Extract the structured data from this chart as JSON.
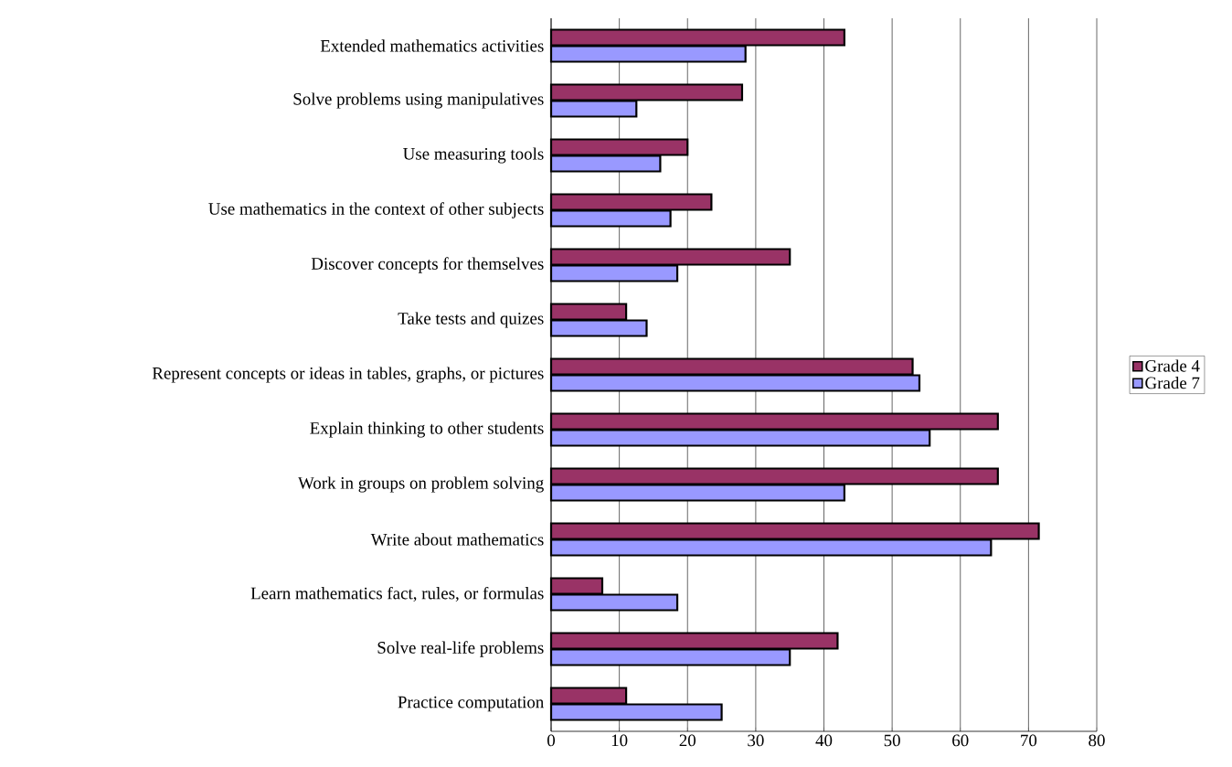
{
  "chart_data": {
    "type": "bar",
    "orientation": "horizontal",
    "categories": [
      "Extended mathematics activities",
      "Solve problems using manipulatives",
      "Use measuring tools",
      "Use mathematics in the context of other subjects",
      "Discover concepts for themselves",
      "Take tests and quizes",
      "Represent concepts or ideas in tables, graphs, or pictures",
      "Explain thinking to other students",
      "Work in groups on problem solving",
      "Write about mathematics",
      "Learn mathematics fact, rules, or formulas",
      "Solve real-life problems",
      "Practice computation"
    ],
    "series": [
      {
        "name": "Grade 4",
        "color": "#993366",
        "values": [
          43,
          28,
          20,
          23.5,
          35,
          11,
          53,
          65.5,
          65.5,
          71.5,
          7.5,
          42,
          11
        ]
      },
      {
        "name": "Grade 7",
        "color": "#9999ff",
        "values": [
          28.5,
          12.5,
          16,
          17.5,
          18.5,
          14,
          54,
          55.5,
          43,
          64.5,
          18.5,
          35,
          25
        ]
      }
    ],
    "xlim": [
      0,
      80
    ],
    "xticks": [
      0,
      10,
      20,
      30,
      40,
      50,
      60,
      70,
      80
    ],
    "grid": "x",
    "legend": "right"
  }
}
